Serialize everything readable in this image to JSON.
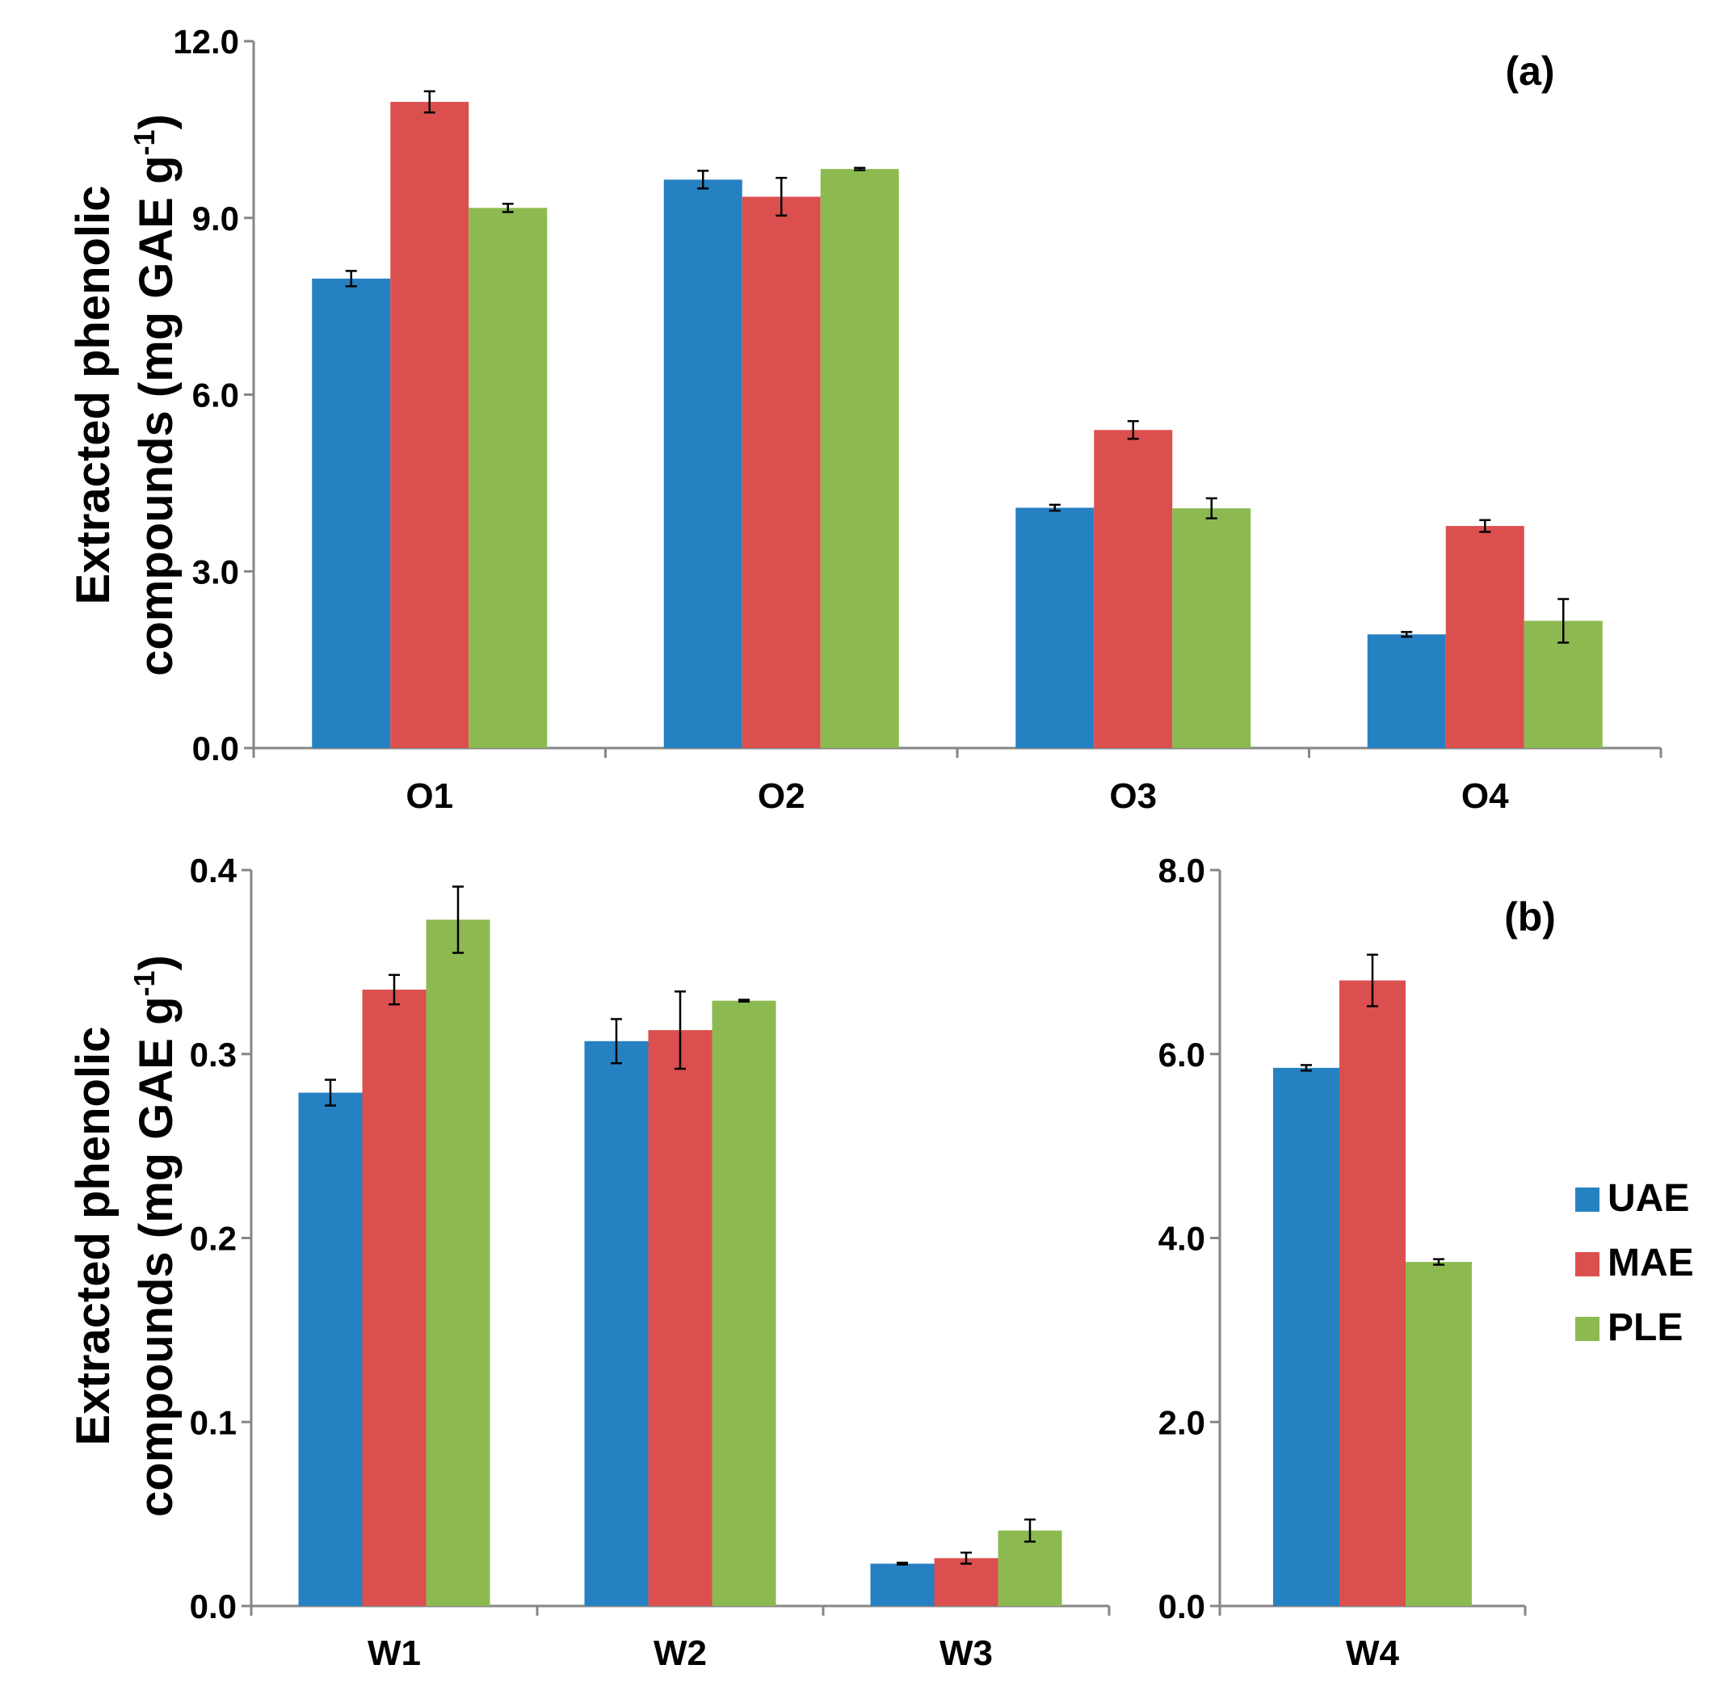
{
  "chart_data": [
    {
      "id": "a",
      "type": "bar",
      "panel_label": "(a)",
      "ylabel_line1": "Extracted phenolic",
      "ylabel_line2": "compounds (mg GAE g",
      "ylabel_sup": "-1",
      "ylabel_close": ")",
      "ylim": [
        0,
        12
      ],
      "yticks": [
        {
          "value": 0,
          "label": "0.0"
        },
        {
          "value": 3,
          "label": "3.0"
        },
        {
          "value": 6,
          "label": "6.0"
        },
        {
          "value": 9,
          "label": "9.0"
        },
        {
          "value": 12,
          "label": "12.0"
        }
      ],
      "categories": [
        "O1",
        "O2",
        "O3",
        "O4"
      ],
      "series": [
        {
          "name": "UAE",
          "color": "#2681c2",
          "values": [
            7.97,
            9.65,
            4.08,
            1.93
          ],
          "errors": [
            0.13,
            0.15,
            0.05,
            0.04
          ]
        },
        {
          "name": "MAE",
          "color": "#dc4f4f",
          "values": [
            10.97,
            9.36,
            5.4,
            3.77
          ],
          "errors": [
            0.18,
            0.32,
            0.15,
            0.1
          ]
        },
        {
          "name": "PLE",
          "color": "#8dba50",
          "values": [
            9.17,
            9.83,
            4.07,
            2.16
          ],
          "errors": [
            0.07,
            0.02,
            0.17,
            0.37
          ]
        }
      ]
    },
    {
      "id": "b-left",
      "type": "bar",
      "panel_label": "",
      "ylabel_line1": "Extracted phenolic",
      "ylabel_line2": "compounds  (mg GAE g",
      "ylabel_sup": "-1",
      "ylabel_close": ")",
      "ylim": [
        0,
        0.4
      ],
      "yticks": [
        {
          "value": 0,
          "label": "0.0"
        },
        {
          "value": 0.1,
          "label": "0.1"
        },
        {
          "value": 0.2,
          "label": "0.2"
        },
        {
          "value": 0.3,
          "label": "0.3"
        },
        {
          "value": 0.4,
          "label": "0.4"
        }
      ],
      "categories": [
        "W1",
        "W2",
        "W3"
      ],
      "series": [
        {
          "name": "UAE",
          "color": "#2681c2",
          "values": [
            0.279,
            0.307,
            0.023
          ],
          "errors": [
            0.007,
            0.012,
            0.0005
          ]
        },
        {
          "name": "MAE",
          "color": "#dc4f4f",
          "values": [
            0.335,
            0.313,
            0.026
          ],
          "errors": [
            0.008,
            0.021,
            0.003
          ]
        },
        {
          "name": "PLE",
          "color": "#8dba50",
          "values": [
            0.373,
            0.329,
            0.041
          ],
          "errors": [
            0.018,
            0.0005,
            0.006
          ]
        }
      ]
    },
    {
      "id": "b-right",
      "type": "bar",
      "panel_label": "(b)",
      "ylim": [
        0,
        8
      ],
      "yticks": [
        {
          "value": 0,
          "label": "0.0"
        },
        {
          "value": 2,
          "label": "2.0"
        },
        {
          "value": 4,
          "label": "4.0"
        },
        {
          "value": 6,
          "label": "6.0"
        },
        {
          "value": 8,
          "label": "8.0"
        }
      ],
      "categories": [
        "W4"
      ],
      "series": [
        {
          "name": "UAE",
          "color": "#2681c2",
          "values": [
            5.85
          ],
          "errors": [
            0.03
          ]
        },
        {
          "name": "MAE",
          "color": "#dc4f4f",
          "values": [
            6.8
          ],
          "errors": [
            0.28
          ]
        },
        {
          "name": "PLE",
          "color": "#8dba50",
          "values": [
            3.74
          ],
          "errors": [
            0.03
          ]
        }
      ]
    }
  ],
  "legend": [
    {
      "name": "UAE",
      "color": "#2681c2"
    },
    {
      "name": "MAE",
      "color": "#dc4f4f"
    },
    {
      "name": "PLE",
      "color": "#8dba50"
    }
  ]
}
